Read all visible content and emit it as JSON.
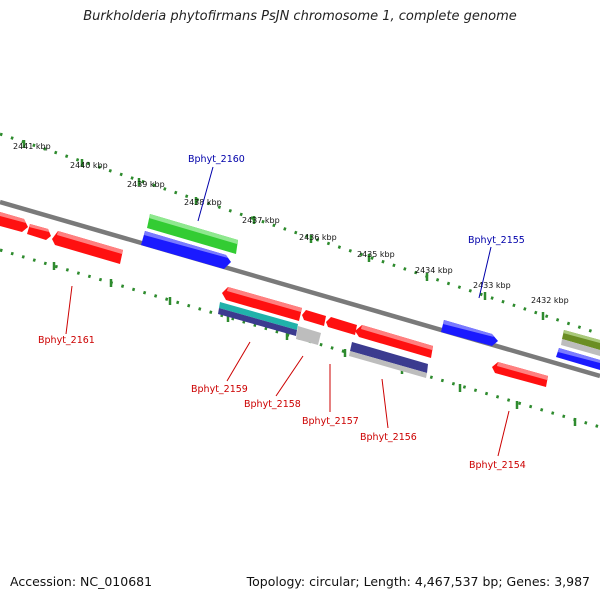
{
  "title": "Burkholderia phytofirmans PsJN chromosome 1, complete genome",
  "footer": {
    "accession": "Accession: NC_010681",
    "summary": "Topology: circular; Length: 4,467,537 bp; Genes: 3,987"
  },
  "ruler_labels": [
    "2441 kbp",
    "2440 kbp",
    "2439 kbp",
    "2438 kbp",
    "2437 kbp",
    "2436 kbp",
    "2435 kbp",
    "2434 kbp",
    "2433 kbp",
    "2432 kbp"
  ],
  "gene_labels": {
    "Bphyt_2160": "Bphyt_2160",
    "Bphyt_2155": "Bphyt_2155",
    "Bphyt_2161": "Bphyt_2161",
    "Bphyt_2159": "Bphyt_2159",
    "Bphyt_2158": "Bphyt_2158",
    "Bphyt_2157": "Bphyt_2157",
    "Bphyt_2156": "Bphyt_2156",
    "Bphyt_2154": "Bphyt_2154"
  },
  "colors": {
    "backbone": "#7a7a7a",
    "ruler_dots": "#2e8b2e",
    "forward_label": "#0000aa",
    "reverse_label": "#cc0000",
    "gene_red": "#ff1010",
    "gene_blue": "#1a1aff",
    "gene_green": "#33cc33",
    "gene_olive": "#6b8e23",
    "gene_grey": "#bdbdbd",
    "gene_cyan": "#20b2aa",
    "gene_navy": "#3b3b8f"
  }
}
